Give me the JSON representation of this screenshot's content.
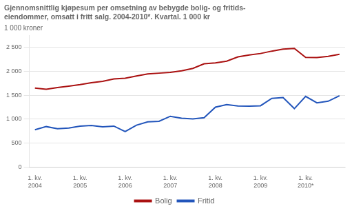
{
  "chart_data": {
    "type": "line",
    "title": "Gjennomsnittlig kjøpesum per omsetning av bebygde bolig- og fritids-\neiendommer, omsatt i fritt salg. 2004-2010*. Kvartal. 1 000 kr",
    "ylabel": "1 000 kroner",
    "categories": [
      "1. kv.\n2004",
      null,
      null,
      null,
      "1. kv.\n2005",
      null,
      null,
      null,
      "1. kv.\n2006",
      null,
      null,
      null,
      "1. kv.\n2007",
      null,
      null,
      null,
      "1. kv.\n2008",
      null,
      null,
      null,
      "1. kv.\n2009",
      null,
      null,
      null,
      "1. kv.\n2010*",
      null,
      null,
      null
    ],
    "series": [
      {
        "name": "Bolig",
        "color": "#aa1111",
        "values": [
          1650,
          1625,
          1660,
          1690,
          1720,
          1760,
          1790,
          1840,
          1855,
          1900,
          1945,
          1960,
          1975,
          2010,
          2060,
          2155,
          2175,
          2210,
          2300,
          2340,
          2370,
          2420,
          2460,
          2475,
          2290,
          2285,
          2310,
          2355
        ]
      },
      {
        "name": "Fritid",
        "color": "#2255bb",
        "values": [
          780,
          845,
          800,
          815,
          855,
          870,
          840,
          855,
          740,
          875,
          945,
          955,
          1060,
          1020,
          1005,
          1030,
          1250,
          1305,
          1275,
          1270,
          1280,
          1435,
          1450,
          1220,
          1475,
          1340,
          1375,
          1490
        ]
      }
    ],
    "ylim": [
      0,
      2750
    ],
    "yticks": [
      0,
      500,
      {
        "value": 1000,
        "label": "1 000"
      },
      {
        "value": 1500,
        "label": "1 500"
      },
      {
        "value": 2000,
        "label": "2 000"
      },
      {
        "value": 2500,
        "label": "2 500"
      }
    ],
    "grid": true,
    "legend": "bottom"
  }
}
